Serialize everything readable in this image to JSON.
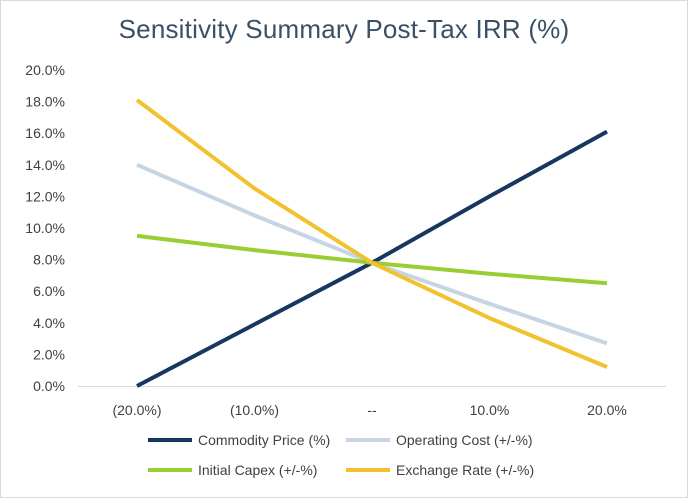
{
  "chart_data": {
    "type": "line",
    "title": "Sensitivity Summary Post-Tax IRR (%)",
    "categories": [
      "(20.0%)",
      "(10.0%)",
      "--",
      "10.0%",
      "20.0%"
    ],
    "y_tick_labels": [
      "0.0%",
      "2.0%",
      "4.0%",
      "6.0%",
      "8.0%",
      "10.0%",
      "12.0%",
      "14.0%",
      "16.0%",
      "18.0%",
      "20.0%"
    ],
    "ylim": [
      0,
      20
    ],
    "y_step": 2,
    "xlabel": "",
    "ylabel": "",
    "grid": false,
    "legend_position": "bottom",
    "series": [
      {
        "name": "Commodity Price (%)",
        "color": "#17375e",
        "values": [
          0.0,
          3.9,
          7.8,
          12.0,
          16.1
        ]
      },
      {
        "name": "Operating Cost (+/-%)",
        "color": "#c5d5e4",
        "values": [
          14.0,
          10.8,
          7.8,
          5.2,
          2.7
        ]
      },
      {
        "name": "Initial Capex (+/-%)",
        "color": "#9acd32",
        "values": [
          9.5,
          8.6,
          7.8,
          7.1,
          6.5
        ]
      },
      {
        "name": "Exchange Rate (+/-%)",
        "color": "#f2c12e",
        "values": [
          18.1,
          12.5,
          7.8,
          4.3,
          1.2
        ]
      }
    ]
  }
}
